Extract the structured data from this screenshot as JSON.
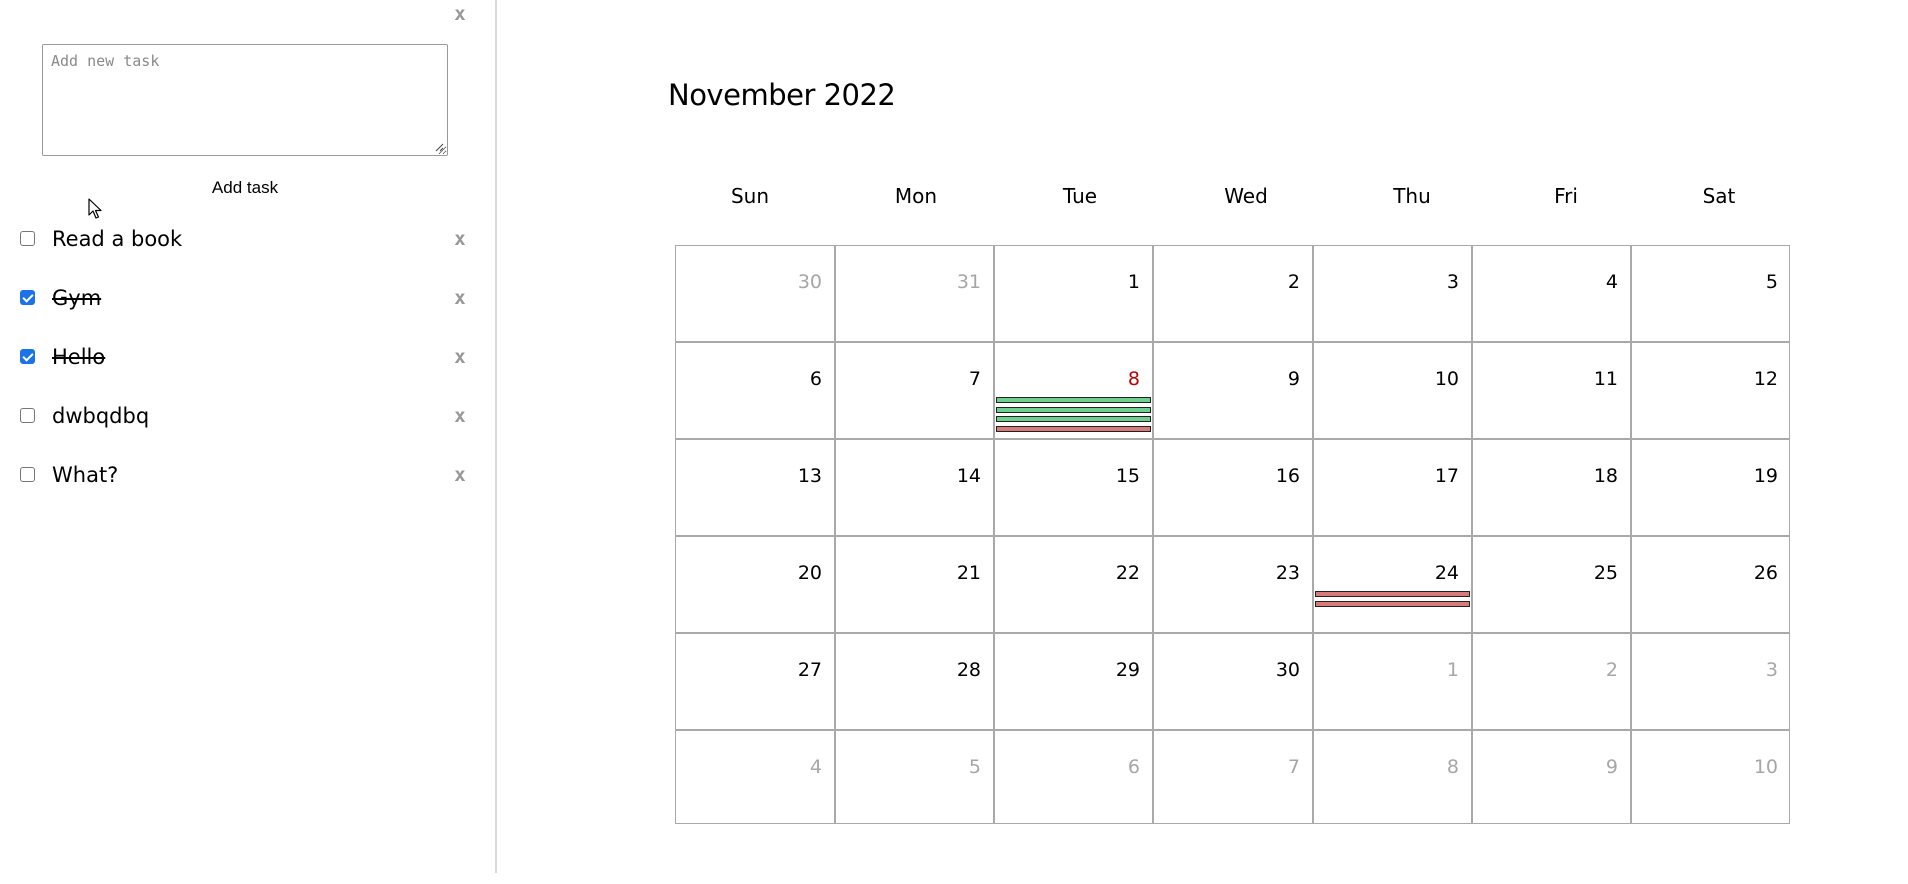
{
  "sidebar": {
    "close_label": "x",
    "input": {
      "placeholder": "Add new task",
      "value": ""
    },
    "add_button_label": "Add task",
    "tasks": [
      {
        "label": "Read a book",
        "done": false,
        "remove_label": "x"
      },
      {
        "label": "Gym",
        "done": true,
        "remove_label": "x"
      },
      {
        "label": "Hello",
        "done": true,
        "remove_label": "x"
      },
      {
        "label": "dwbqdbq",
        "done": false,
        "remove_label": "x"
      },
      {
        "label": "What?",
        "done": false,
        "remove_label": "x"
      }
    ]
  },
  "calendar": {
    "title": "November 2022",
    "weekdays": [
      "Sun",
      "Mon",
      "Tue",
      "Wed",
      "Thu",
      "Fri",
      "Sat"
    ],
    "today": "8",
    "colors": {
      "done_event": "#6fcf8e",
      "pending_event": "#d67a7a",
      "today": "#c00000",
      "other_month": "#a6a6a6"
    },
    "weeks": [
      [
        {
          "day": "30",
          "other": true
        },
        {
          "day": "31",
          "other": true
        },
        {
          "day": "1"
        },
        {
          "day": "2"
        },
        {
          "day": "3"
        },
        {
          "day": "4"
        },
        {
          "day": "5"
        }
      ],
      [
        {
          "day": "6"
        },
        {
          "day": "7"
        },
        {
          "day": "8",
          "today": true,
          "events": [
            "done",
            "done",
            "done",
            "pending"
          ]
        },
        {
          "day": "9"
        },
        {
          "day": "10"
        },
        {
          "day": "11"
        },
        {
          "day": "12"
        }
      ],
      [
        {
          "day": "13"
        },
        {
          "day": "14"
        },
        {
          "day": "15"
        },
        {
          "day": "16"
        },
        {
          "day": "17"
        },
        {
          "day": "18"
        },
        {
          "day": "19"
        }
      ],
      [
        {
          "day": "20"
        },
        {
          "day": "21"
        },
        {
          "day": "22"
        },
        {
          "day": "23"
        },
        {
          "day": "24",
          "events": [
            "pending",
            "pending"
          ]
        },
        {
          "day": "25"
        },
        {
          "day": "26"
        }
      ],
      [
        {
          "day": "27"
        },
        {
          "day": "28"
        },
        {
          "day": "29"
        },
        {
          "day": "30"
        },
        {
          "day": "1",
          "other": true
        },
        {
          "day": "2",
          "other": true
        },
        {
          "day": "3",
          "other": true
        }
      ],
      [
        {
          "day": "4",
          "other": true
        },
        {
          "day": "5",
          "other": true
        },
        {
          "day": "6",
          "other": true
        },
        {
          "day": "7",
          "other": true
        },
        {
          "day": "8",
          "other": true
        },
        {
          "day": "9",
          "other": true
        },
        {
          "day": "10",
          "other": true
        }
      ]
    ]
  }
}
